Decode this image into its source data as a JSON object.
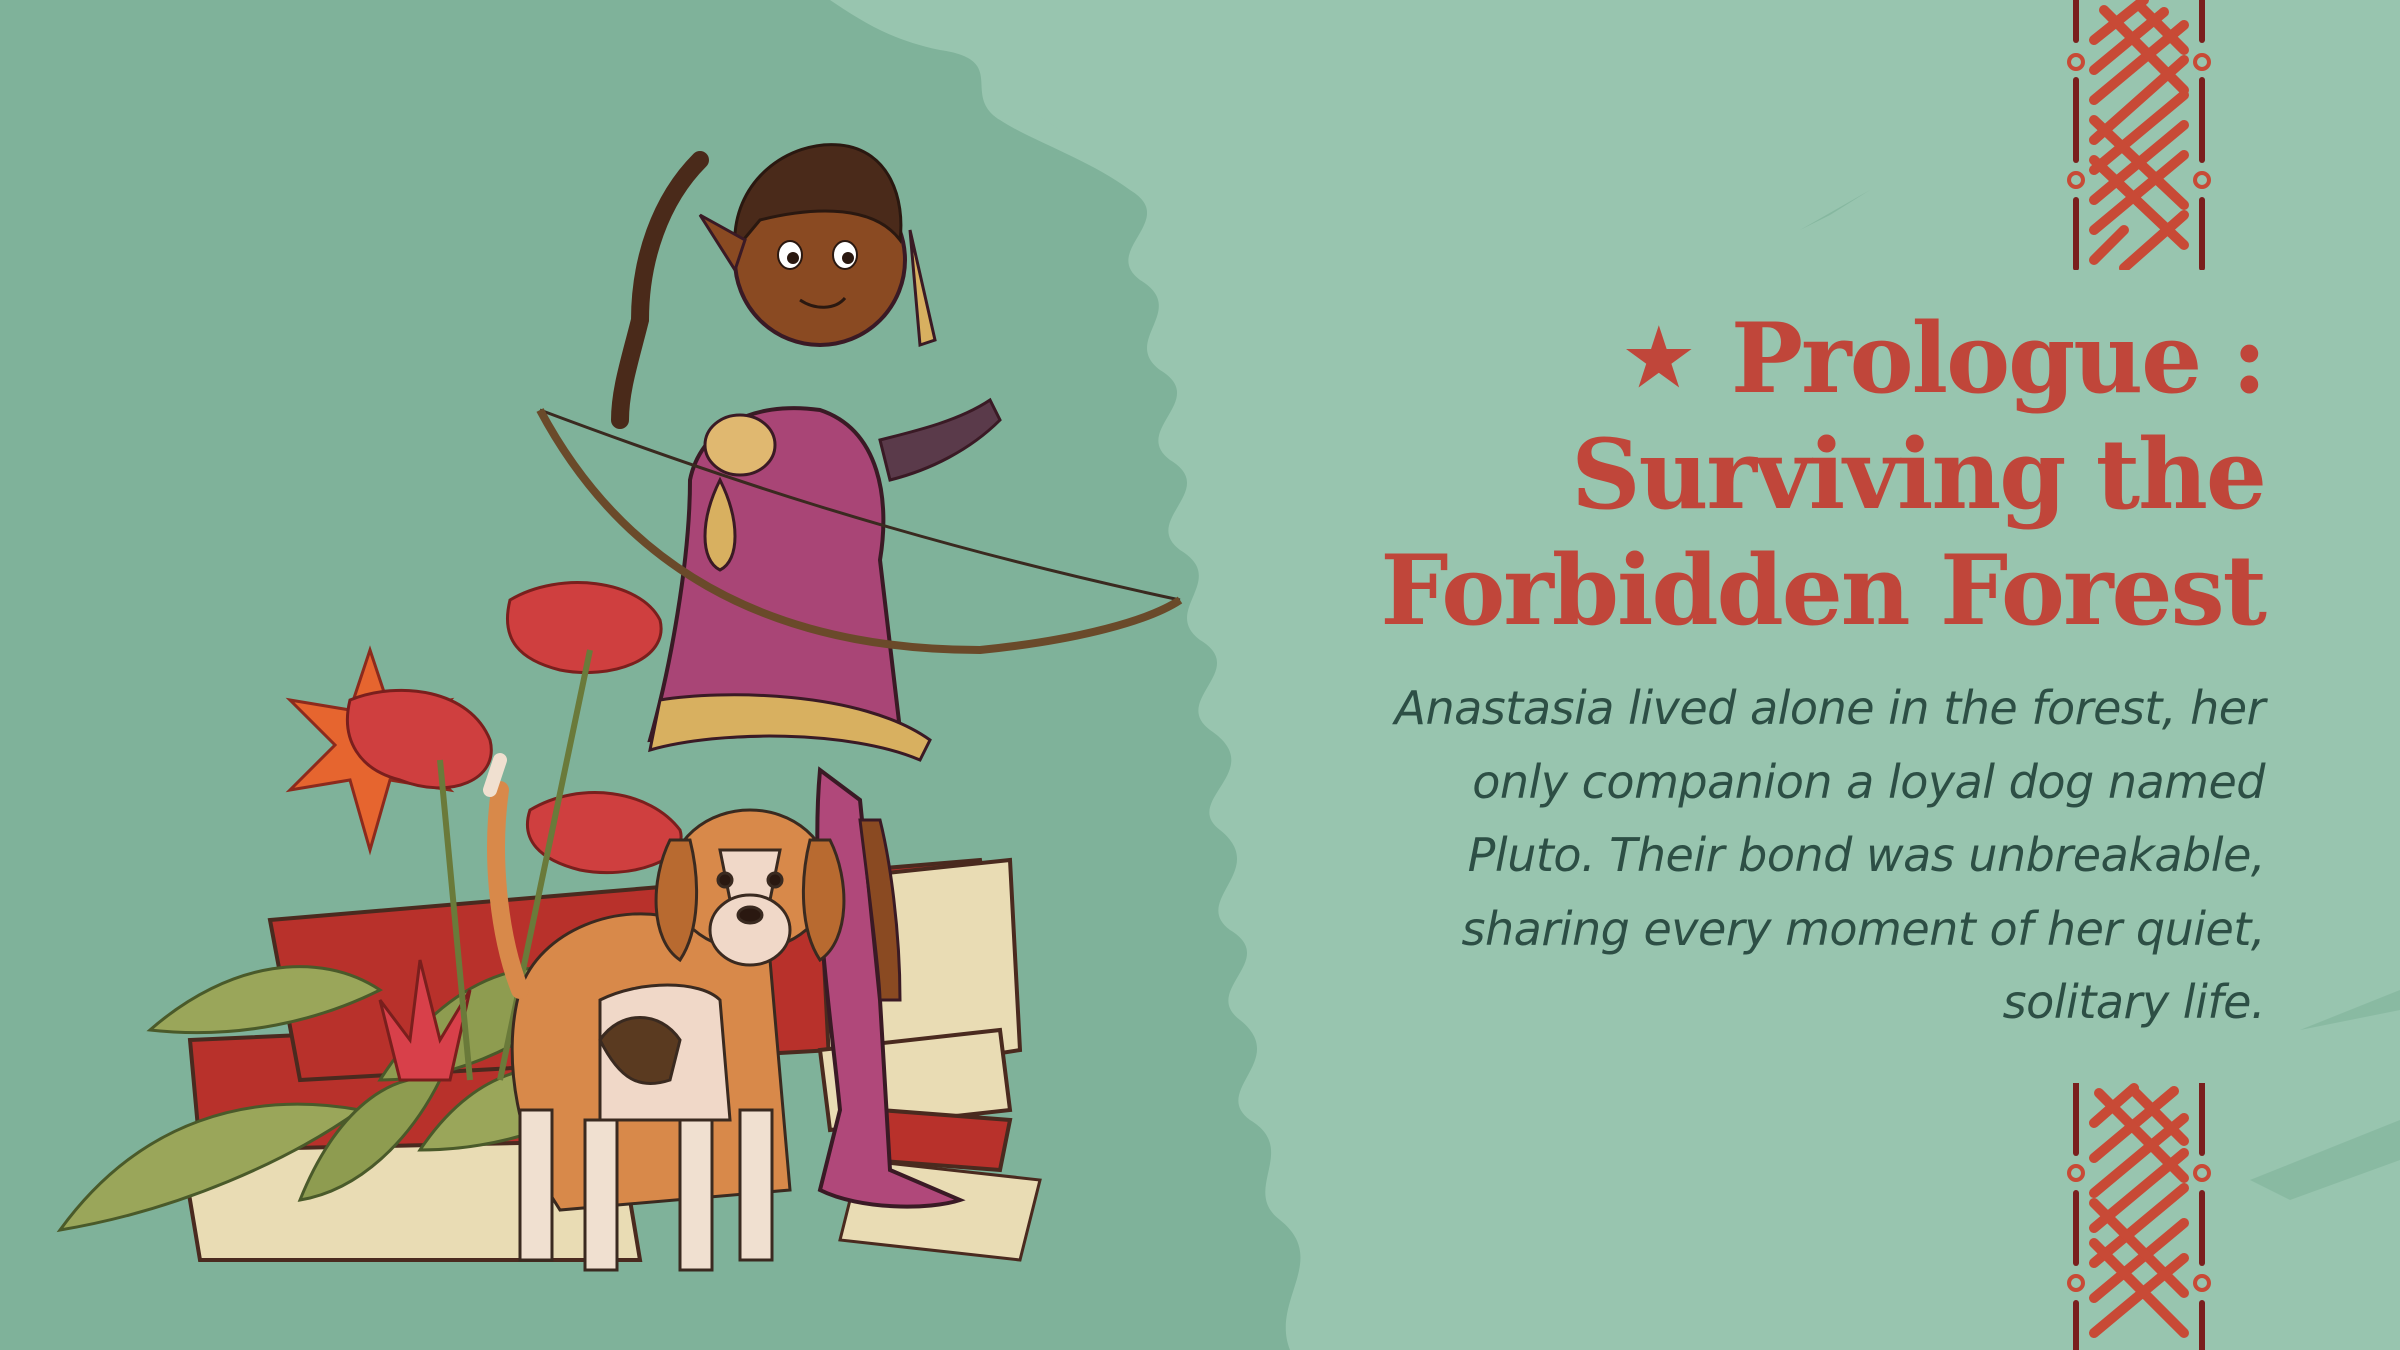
{
  "slide": {
    "title_lines": [
      "Prologue :",
      "Surviving the",
      "Forbidden Forest"
    ],
    "star_icon": "★",
    "body_lines": [
      "Anastasia lived alone in the forest, her",
      "only companion a loyal dog named",
      "Pluto. Their bond was unbreakable,",
      "sharing every moment of her quiet,",
      "solitary life."
    ]
  },
  "colors": {
    "background": "#7fb29a",
    "light_wash": "#98c5af",
    "title": "#c0463a",
    "body": "#2d4f45",
    "pattern_red": "#c84a36",
    "pattern_dark": "#7a1f1d"
  },
  "icons": {
    "star": "star-icon",
    "border_pattern": "tribal-pattern-border",
    "illustration": "elf-archer-with-beagle-illustration"
  }
}
